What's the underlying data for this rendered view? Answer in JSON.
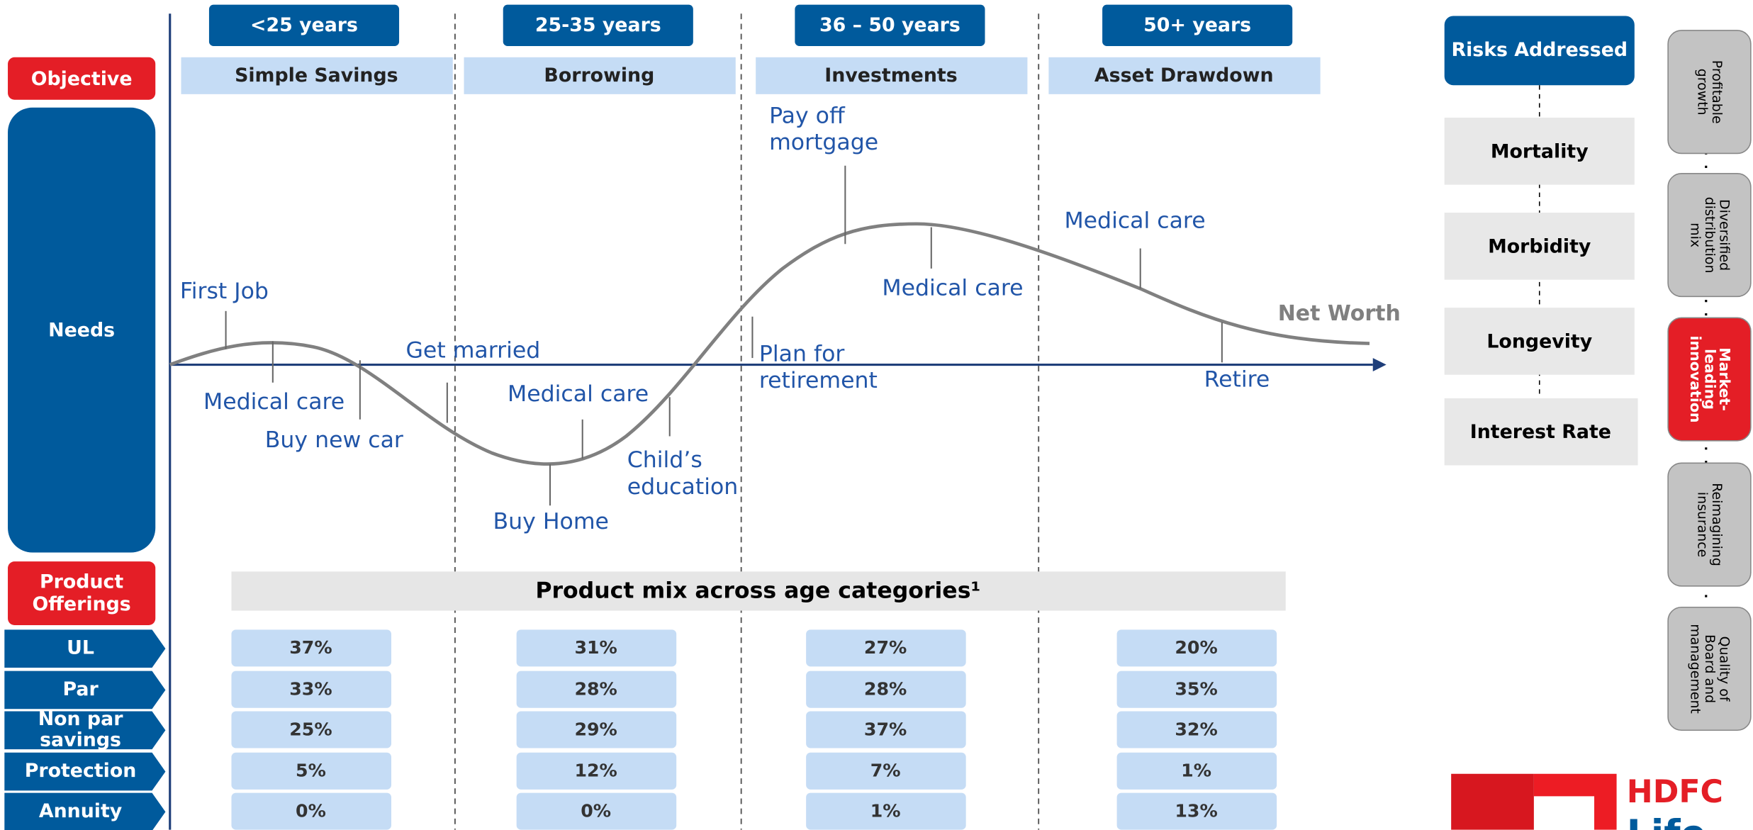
{
  "age_groups": [
    {
      "age": "<25 years",
      "objective": "Simple Savings"
    },
    {
      "age": "25-35 years",
      "objective": "Borrowing"
    },
    {
      "age": "36 – 50 years",
      "objective": "Investments"
    },
    {
      "age": "50+ years",
      "objective": "Asset Drawdown"
    }
  ],
  "labels": {
    "objective": "Objective",
    "needs": "Needs",
    "product_offerings": [
      "Product",
      "Offerings"
    ],
    "net_worth": "Net Worth"
  },
  "events": [
    [
      "First Job"
    ],
    [
      "Medical care"
    ],
    [
      "Buy new car"
    ],
    [
      "Get married"
    ],
    [
      "Medical care"
    ],
    [
      "Buy Home"
    ],
    [
      "Child’s",
      "education"
    ],
    [
      "Plan for",
      "retirement"
    ],
    [
      "Pay off",
      "mortgage"
    ],
    [
      "Medical care"
    ],
    [
      "Medical care"
    ],
    [
      "Retire"
    ]
  ],
  "table": {
    "title": "Product mix across age categories¹",
    "rows": [
      {
        "label": [
          "UL"
        ],
        "cells": [
          "37%",
          "31%",
          "27%",
          "20%"
        ]
      },
      {
        "label": [
          "Par"
        ],
        "cells": [
          "33%",
          "28%",
          "28%",
          "35%"
        ]
      },
      {
        "label": [
          "Non par",
          "savings"
        ],
        "cells": [
          "25%",
          "29%",
          "37%",
          "32%"
        ]
      },
      {
        "label": [
          "Protection"
        ],
        "cells": [
          "5%",
          "12%",
          "7%",
          "1%"
        ]
      },
      {
        "label": [
          "Annuity"
        ],
        "cells": [
          "0%",
          "0%",
          "1%",
          "13%"
        ]
      }
    ]
  },
  "risks": {
    "title": "Risks Addressed",
    "items": [
      "Mortality",
      "Morbidity",
      "Longevity",
      "Interest Rate"
    ]
  },
  "pillars": [
    [
      "Profitable",
      "growth"
    ],
    [
      "Diversified",
      "distribution",
      "mix"
    ],
    [
      "Market-",
      "leading",
      "innovation"
    ],
    [
      "Reimagining",
      "insurance"
    ],
    [
      "Quality of",
      "Board and",
      "management"
    ]
  ],
  "logo": [
    "HDFC",
    "Life"
  ]
}
